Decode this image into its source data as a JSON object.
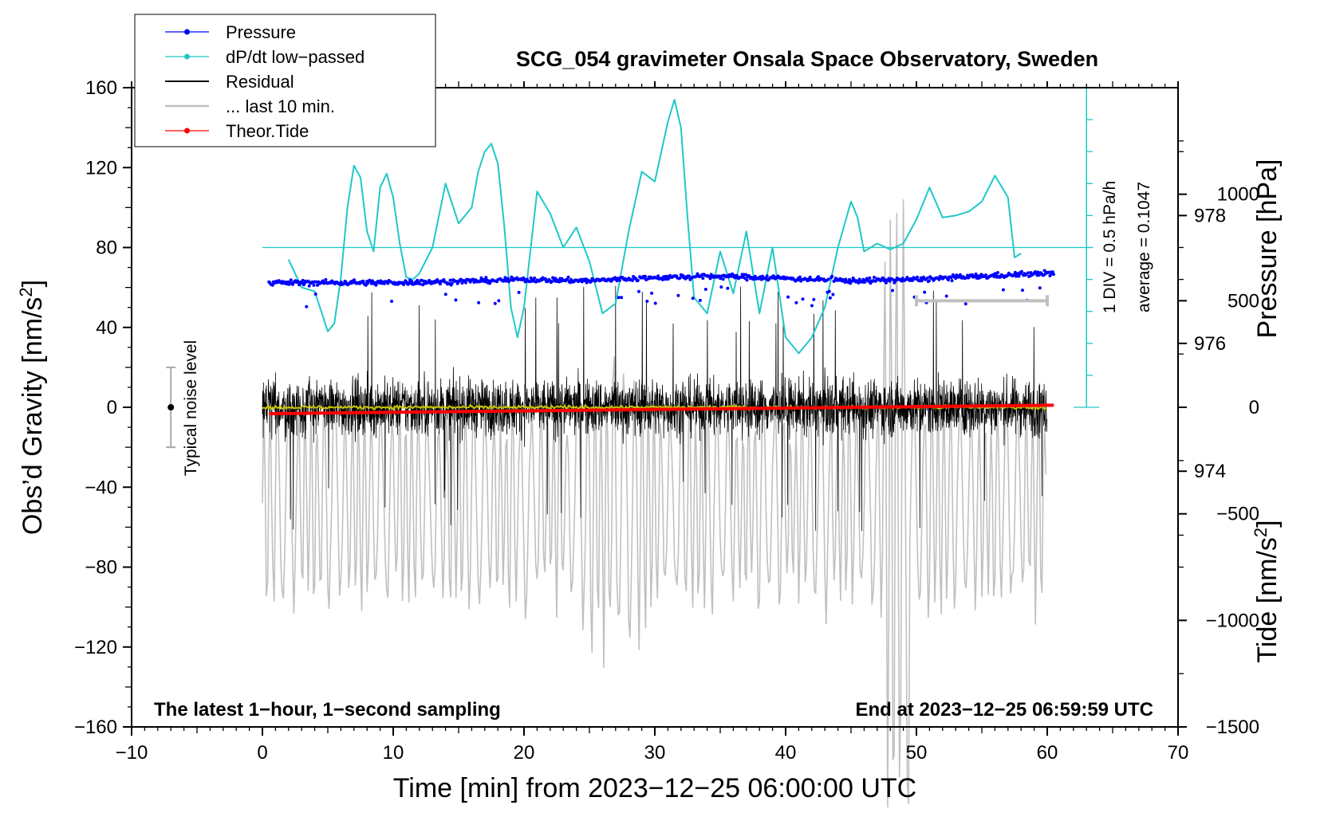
{
  "chart_data": {
    "type": "line",
    "title": "SCG_054 gravimeter Onsala Space Observatory, Sweden",
    "xlabel": "Time [min] from 2023−12−25 06:00:00 UTC",
    "ylabel": "Obs’d Gravity [nm/s",
    "ylabel_sup": "2",
    "ylabel_end": "]",
    "y2label": "Pressure [hPa]",
    "y3label": "Tide [nm/s",
    "y3label_sup": "2",
    "y3label_end": "]",
    "xlim": [
      -10,
      70
    ],
    "ylim": [
      -160,
      160
    ],
    "pressure_lim": [
      970,
      980
    ],
    "tide_lim": [
      -1500,
      1500
    ],
    "x_ticks": [
      -10,
      0,
      10,
      20,
      30,
      40,
      50,
      60,
      70
    ],
    "x_tick_labels": [
      "−10",
      "0",
      "10",
      "20",
      "30",
      "40",
      "50",
      "60",
      "70"
    ],
    "y_ticks": [
      -160,
      -120,
      -80,
      -40,
      0,
      40,
      80,
      120,
      160
    ],
    "y_tick_labels": [
      "−160",
      "−120",
      "−80",
      "−40",
      "0",
      "40",
      "80",
      "120",
      "160"
    ],
    "pressure_ticks": [
      974,
      976,
      978
    ],
    "pressure_tick_labels": [
      "974",
      "976",
      "978"
    ],
    "tide_ticks": [
      -1500,
      -1000,
      -500,
      0,
      500,
      1000
    ],
    "tide_tick_labels": [
      "−1500",
      "−1000",
      "−500",
      "0",
      "500",
      "1000"
    ],
    "legend": {
      "position": "top-left",
      "entries": [
        {
          "label": "Pressure",
          "color": "#0000ff",
          "marker": true
        },
        {
          "label": "dP/dt low−passed",
          "color": "#20c8c8",
          "marker": true
        },
        {
          "label": "Residual",
          "color": "#000000",
          "marker": false
        },
        {
          "label": "... last 10 min.",
          "color": "#c0c0c0",
          "marker": false
        },
        {
          "label": "Theor.Tide",
          "color": "#ff0000",
          "marker": true
        }
      ]
    },
    "annotations": {
      "bottom_left": "The latest 1−hour, 1−second sampling",
      "bottom_right": "End at 2023−12−25 06:59:59 UTC",
      "noise_label": "Typical noise level",
      "dpdt_scale": "1 DIV = 0.5 hPa/h",
      "dpdt_average": "average = 0.1047"
    },
    "noise_bar": {
      "x": -7,
      "center": 0,
      "half_range": 20
    },
    "dpdt_scale_axis": {
      "x": 63,
      "from": 0,
      "to": 160,
      "divisions": 10
    },
    "dpdt_baseline_gravity": 80,
    "last10_range_min": [
      50,
      60
    ],
    "last10_bar_tide": 500,
    "series": [
      {
        "name": "Pressure",
        "axis": "pressure",
        "color": "#0000ff",
        "x": [
          0.5,
          5,
          10,
          15,
          20,
          25,
          30,
          35,
          40,
          45,
          50,
          55,
          60.5
        ],
        "values": [
          976.95,
          976.95,
          976.95,
          976.97,
          977.0,
          976.98,
          977.03,
          977.05,
          977.02,
          976.98,
          977.0,
          977.05,
          977.1
        ],
        "scatter": 0.08
      },
      {
        "name": "dP/dt low−passed",
        "axis": "gravity",
        "color": "#20c8c8",
        "x": [
          2.0,
          2.5,
          3.0,
          4.0,
          5.0,
          5.5,
          6.0,
          6.5,
          7.0,
          7.5,
          8.0,
          8.5,
          9.0,
          9.5,
          10.0,
          10.5,
          11.0,
          11.5,
          12.0,
          13.0,
          14.0,
          15.0,
          16.0,
          16.5,
          17.0,
          17.5,
          18.0,
          18.5,
          19.0,
          19.5,
          20.0,
          21.0,
          22.0,
          23.0,
          24.0,
          25.0,
          26.0,
          27.0,
          28.0,
          29.0,
          30.0,
          31.0,
          31.5,
          32.0,
          32.5,
          33.0,
          34.0,
          35.0,
          36.0,
          37.0,
          38.0,
          39.0,
          40.0,
          41.0,
          42.0,
          43.0,
          44.0,
          45.0,
          45.5,
          46.0,
          47.0,
          48.0,
          49.0,
          50.0,
          51.0,
          52.0,
          53.0,
          54.0,
          55.0,
          56.0,
          57.0,
          57.5,
          58.0
        ],
        "values": [
          74,
          67,
          60,
          58,
          38,
          42,
          65,
          100,
          121,
          115,
          88,
          78,
          110,
          117,
          105,
          82,
          65,
          64,
          67,
          80,
          112,
          92,
          100,
          118,
          128,
          132,
          122,
          90,
          50,
          35,
          50,
          108,
          97,
          80,
          90,
          73,
          47,
          52,
          88,
          118,
          113,
          143,
          154,
          140,
          95,
          55,
          47,
          78,
          57,
          88,
          47,
          80,
          35,
          27,
          35,
          50,
          80,
          103,
          95,
          78,
          82,
          79,
          82,
          94,
          110,
          95,
          96,
          98,
          103,
          116,
          105,
          75,
          77
        ],
        "baseline": 80
      },
      {
        "name": "Residual",
        "axis": "gravity",
        "color": "#000000",
        "x_range": [
          0,
          60
        ],
        "typical_amplitude": 25,
        "peak_amplitude": 62
      },
      {
        "name": "Residual smoothed",
        "axis": "gravity",
        "color": "#c8c800",
        "x_range": [
          0,
          60
        ],
        "values_mean": 0
      },
      {
        "name": "... last 10 min.",
        "axis": "tide",
        "color": "#c0c0c0",
        "x_range": [
          0,
          60
        ],
        "center": -450,
        "typical_amplitude": 450,
        "peak_amplitude": 1600
      },
      {
        "name": "Theor.Tide",
        "axis": "tide",
        "color": "#ff0000",
        "x": [
          0.5,
          60.5
        ],
        "values": [
          -30,
          10
        ]
      }
    ]
  }
}
